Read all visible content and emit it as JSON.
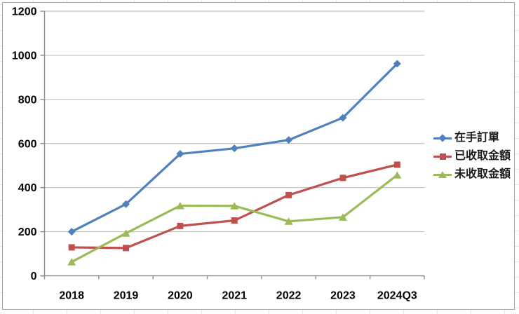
{
  "chart_data": {
    "type": "line",
    "categories": [
      "2018",
      "2019",
      "2020",
      "2021",
      "2022",
      "2023",
      "2024Q3"
    ],
    "series": [
      {
        "name": "在手訂單",
        "color": "#4F81BD",
        "marker": "diamond",
        "values": [
          200,
          325,
          553,
          578,
          616,
          717,
          962
        ]
      },
      {
        "name": "已收取金額",
        "color": "#C0504D",
        "marker": "square",
        "values": [
          129,
          126,
          226,
          251,
          366,
          444,
          504
        ]
      },
      {
        "name": "未收取金額",
        "color": "#9BBB59",
        "marker": "triangle",
        "values": [
          63,
          193,
          318,
          317,
          247,
          266,
          457
        ]
      }
    ],
    "title": "",
    "xlabel": "",
    "ylabel": "",
    "ylim": [
      0,
      1200
    ],
    "yticks": [
      0,
      200,
      400,
      600,
      800,
      1000,
      1200
    ],
    "grid": true,
    "legend_position": "right"
  },
  "colors": {
    "plot_background": "#ffffff",
    "gridline": "#bfbfbf",
    "axis": "#8c8c8c",
    "tick_label": "#000000",
    "chart_border": "#a6a6a6",
    "sheet_gridline": "#e4e7ea"
  }
}
